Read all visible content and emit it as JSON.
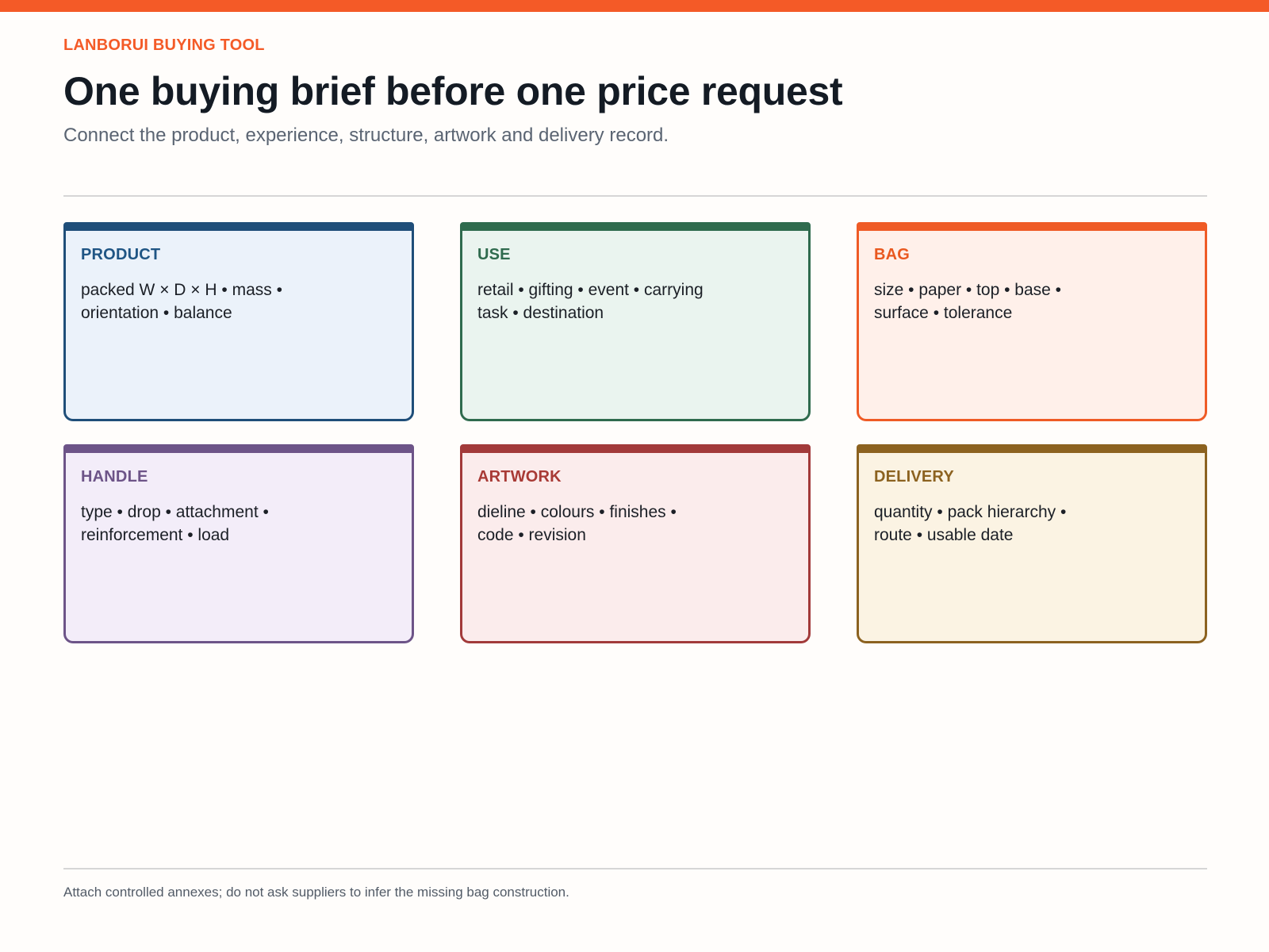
{
  "header": {
    "eyebrow": "LANBORUI BUYING TOOL",
    "title": "One buying brief before one price request",
    "subtitle": "Connect the product, experience, structure, artwork and delivery record."
  },
  "colors": {
    "accent": "#f45a27",
    "page_background": "#fffdfb"
  },
  "cards": [
    {
      "label": "PRODUCT",
      "body": "packed W × D × H • mass • orientation • balance",
      "border": "#1f4e79",
      "fill": "#ebf2fa",
      "label_color": "#1f5584"
    },
    {
      "label": "USE",
      "body": "retail • gifting • event • carrying task • destination",
      "border": "#2f6b4e",
      "fill": "#eaf4ef",
      "label_color": "#2f6b4e"
    },
    {
      "label": "BAG",
      "body": "size • paper • top • base • surface • tolerance",
      "border": "#ef5b26",
      "fill": "#fff0ea",
      "label_color": "#e9581f"
    },
    {
      "label": "HANDLE",
      "body": "type • drop • attachment • reinforcement • load",
      "border": "#6d5488",
      "fill": "#f3edf9",
      "label_color": "#6d5488"
    },
    {
      "label": "ARTWORK",
      "body": "dieline • colours • finishes • code • revision",
      "border": "#a23a3a",
      "fill": "#fbecec",
      "label_color": "#a83a35"
    },
    {
      "label": "DELIVERY",
      "body": "quantity • pack hierarchy • route • usable date",
      "border": "#8c6220",
      "fill": "#fbf3e3",
      "label_color": "#8c6220"
    }
  ],
  "footer": {
    "note": "Attach controlled annexes; do not ask suppliers to infer the missing bag construction."
  }
}
